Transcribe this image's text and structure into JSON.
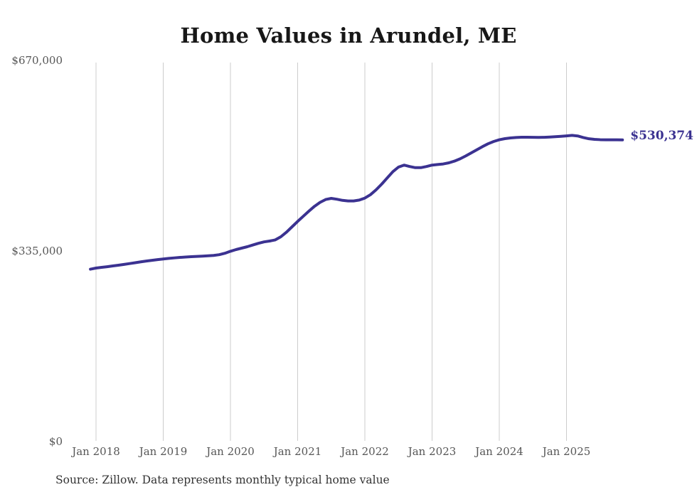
{
  "title": "Home Values in Arundel, ME",
  "source_note": "Source: Zillow. Data represents monthly typical home value",
  "colors": {
    "line": "#3b3291",
    "end_label": "#3b3291",
    "gridline": "#cccccc",
    "axis_text": "#565656",
    "title_text": "#171717",
    "source_text": "#333333",
    "background": "#ffffff"
  },
  "chart_data": {
    "type": "line",
    "title": "Home Values in Arundel, ME",
    "series_name": "Monthly typical home value",
    "xlabel": "",
    "ylabel": "",
    "ylim": [
      0,
      670000
    ],
    "y_ticks": [
      0,
      335000,
      670000
    ],
    "y_tick_labels": [
      "$0",
      "$335,000",
      "$670,000"
    ],
    "x_tick_labels": [
      "Jan 2018",
      "Jan 2019",
      "Jan 2020",
      "Jan 2021",
      "Jan 2022",
      "Jan 2023",
      "Jan 2024",
      "Jan 2025"
    ],
    "grid": "vertical-only",
    "legend": "none",
    "last_value_label": "$530,374",
    "last_value": 530374,
    "x": [
      "2017-12",
      "2018-01",
      "2018-02",
      "2018-03",
      "2018-04",
      "2018-05",
      "2018-06",
      "2018-07",
      "2018-08",
      "2018-09",
      "2018-10",
      "2018-11",
      "2018-12",
      "2019-01",
      "2019-02",
      "2019-03",
      "2019-04",
      "2019-05",
      "2019-06",
      "2019-07",
      "2019-08",
      "2019-09",
      "2019-10",
      "2019-11",
      "2019-12",
      "2020-01",
      "2020-02",
      "2020-03",
      "2020-04",
      "2020-05",
      "2020-06",
      "2020-07",
      "2020-08",
      "2020-09",
      "2020-10",
      "2020-11",
      "2020-12",
      "2021-01",
      "2021-02",
      "2021-03",
      "2021-04",
      "2021-05",
      "2021-06",
      "2021-07",
      "2021-08",
      "2021-09",
      "2021-10",
      "2021-11",
      "2021-12",
      "2022-01",
      "2022-02",
      "2022-03",
      "2022-04",
      "2022-05",
      "2022-06",
      "2022-07",
      "2022-08",
      "2022-09",
      "2022-10",
      "2022-11",
      "2022-12",
      "2023-01",
      "2023-02",
      "2023-03",
      "2023-04",
      "2023-05",
      "2023-06",
      "2023-07",
      "2023-08",
      "2023-09",
      "2023-10",
      "2023-11",
      "2023-12",
      "2024-01",
      "2024-02",
      "2024-03",
      "2024-04",
      "2024-05",
      "2024-06",
      "2024-07",
      "2024-08",
      "2024-09",
      "2024-10",
      "2024-11",
      "2024-12",
      "2025-01",
      "2025-02",
      "2025-03",
      "2025-04",
      "2025-05",
      "2025-06",
      "2025-07",
      "2025-08",
      "2025-09",
      "2025-10",
      "2025-11"
    ],
    "values": [
      303000,
      305000,
      306200,
      307400,
      308700,
      310000,
      311400,
      312900,
      314400,
      315900,
      317300,
      318600,
      319900,
      321000,
      322000,
      322900,
      323700,
      324400,
      325000,
      325500,
      326000,
      326500,
      327200,
      328500,
      331000,
      334500,
      337500,
      340000,
      342500,
      345500,
      348500,
      351000,
      352500,
      354500,
      360000,
      368000,
      377500,
      387000,
      396000,
      405000,
      413500,
      420500,
      425500,
      427500,
      426000,
      424000,
      423000,
      423000,
      424500,
      428000,
      434000,
      442500,
      452500,
      463500,
      474500,
      482500,
      486000,
      483500,
      481500,
      481500,
      483500,
      486000,
      487000,
      488000,
      490000,
      493000,
      497000,
      502000,
      507500,
      513000,
      518500,
      523500,
      527500,
      530500,
      532500,
      533800,
      534600,
      535000,
      535000,
      534800,
      534700,
      534900,
      535300,
      535900,
      536600,
      537400,
      538300,
      537200,
      534500,
      532300,
      531200,
      530700,
      530500,
      530400,
      530400,
      530374
    ]
  }
}
